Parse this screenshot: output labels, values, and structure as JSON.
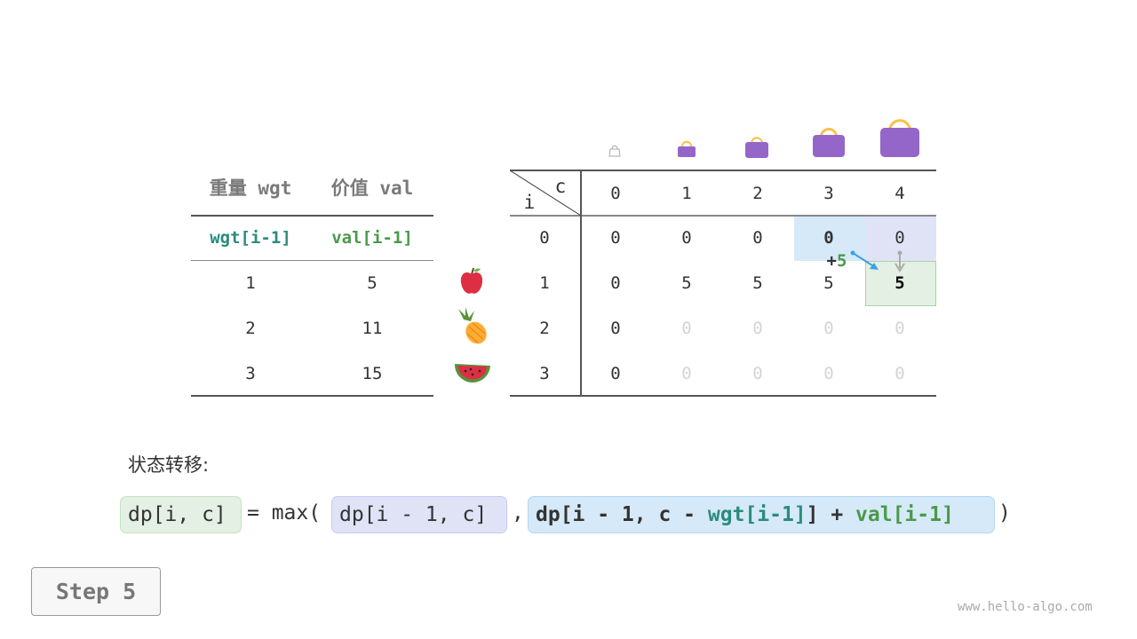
{
  "left_table": {
    "headers": [
      "重量 wgt",
      "价值 val"
    ],
    "subheaders": [
      "wgt[i-1]",
      "val[i-1]"
    ],
    "rows": [
      [
        "1",
        "5"
      ],
      [
        "2",
        "11"
      ],
      [
        "3",
        "15"
      ]
    ]
  },
  "items": [
    "apple-icon",
    "pineapple-icon",
    "watermelon-icon"
  ],
  "dp_table": {
    "corner_i": "i",
    "corner_c": "c",
    "col_headers": [
      "0",
      "1",
      "2",
      "3",
      "4"
    ],
    "row_headers": [
      "0",
      "1",
      "2",
      "3"
    ],
    "rows": [
      [
        "0",
        "0",
        "0",
        "0",
        "0"
      ],
      [
        "0",
        "5",
        "5",
        "5",
        "5"
      ],
      [
        "0",
        "0",
        "0",
        "0",
        "0"
      ],
      [
        "0",
        "0",
        "0",
        "0",
        "0"
      ]
    ],
    "annotation": {
      "plus": "+",
      "value": "5"
    }
  },
  "formula": {
    "label": "状态转移:",
    "lhs": "dp[i, c]",
    "eq": "= max(",
    "opt1": "dp[i - 1, c]",
    "comma": ",",
    "opt2_a": "dp[i - 1, c - ",
    "opt2_wgt": "wgt[i-1]",
    "opt2_b": "] + ",
    "opt2_val": "val[i-1]",
    "close": ")"
  },
  "step_button": "Step 5",
  "watermark": "www.hello-algo.com",
  "colors": {
    "blue_cell": "#d6e9f8",
    "lavender_cell": "#e0e3f6",
    "green_cell": "#e3f0e3",
    "bag": "#9466c9",
    "teal": "#2b8c7c",
    "green": "#4a9a4a"
  }
}
